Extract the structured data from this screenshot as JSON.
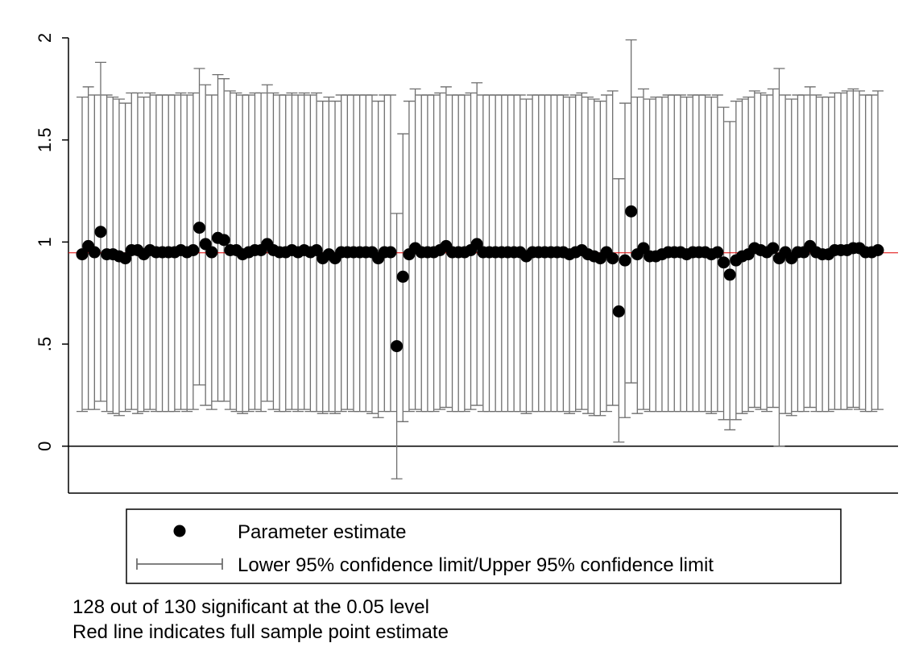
{
  "chart_data": {
    "type": "errorbar",
    "ylim": [
      -0.23,
      2.0
    ],
    "yticks": [
      0,
      {
        "value": 0.5,
        "label": ".5"
      },
      1,
      1.5,
      2
    ],
    "reference_line": {
      "value": 0.947,
      "color": "#e00000"
    },
    "zero_line": {
      "value": 0,
      "color": "#000000"
    },
    "series": [
      {
        "name": "Parameter estimate",
        "color": "#000000",
        "values": [
          0.94,
          0.98,
          0.95,
          1.05,
          0.94,
          0.94,
          0.93,
          0.92,
          0.96,
          0.96,
          0.94,
          0.96,
          0.95,
          0.95,
          0.95,
          0.95,
          0.96,
          0.95,
          0.96,
          1.07,
          0.99,
          0.95,
          1.02,
          1.01,
          0.96,
          0.96,
          0.94,
          0.95,
          0.96,
          0.96,
          0.99,
          0.96,
          0.95,
          0.95,
          0.96,
          0.95,
          0.96,
          0.95,
          0.96,
          0.92,
          0.94,
          0.92,
          0.95,
          0.95,
          0.95,
          0.95,
          0.95,
          0.95,
          0.92,
          0.95,
          0.95,
          0.49,
          0.83,
          0.94,
          0.97,
          0.95,
          0.95,
          0.95,
          0.96,
          0.98,
          0.95,
          0.95,
          0.95,
          0.96,
          0.99,
          0.95,
          0.95,
          0.95,
          0.95,
          0.95,
          0.95,
          0.95,
          0.93,
          0.95,
          0.95,
          0.95,
          0.95,
          0.95,
          0.95,
          0.94,
          0.95,
          0.96,
          0.94,
          0.93,
          0.92,
          0.95,
          0.92,
          0.66,
          0.91,
          1.15,
          0.94,
          0.97,
          0.93,
          0.93,
          0.94,
          0.95,
          0.95,
          0.95,
          0.94,
          0.95,
          0.95,
          0.95,
          0.94,
          0.95,
          0.9,
          0.84,
          0.91,
          0.93,
          0.94,
          0.97,
          0.96,
          0.95,
          0.97,
          0.92,
          0.95,
          0.92,
          0.95,
          0.95,
          0.98,
          0.95,
          0.94,
          0.94,
          0.96,
          0.96,
          0.96,
          0.97,
          0.97,
          0.95,
          0.95,
          0.96
        ]
      },
      {
        "name": "Lower 95% confidence limit/Upper 95% confidence limit",
        "color": "#6e6e6e",
        "lower": [
          0.17,
          0.18,
          0.18,
          0.22,
          0.17,
          0.16,
          0.15,
          0.17,
          0.18,
          0.16,
          0.17,
          0.18,
          0.17,
          0.17,
          0.17,
          0.17,
          0.18,
          0.17,
          0.18,
          0.3,
          0.2,
          0.18,
          0.22,
          0.22,
          0.18,
          0.17,
          0.16,
          0.17,
          0.18,
          0.17,
          0.22,
          0.18,
          0.17,
          0.17,
          0.18,
          0.17,
          0.18,
          0.17,
          0.17,
          0.16,
          0.17,
          0.16,
          0.17,
          0.18,
          0.17,
          0.17,
          0.17,
          0.16,
          0.14,
          0.17,
          0.17,
          -0.16,
          0.12,
          0.17,
          0.18,
          0.17,
          0.17,
          0.17,
          0.18,
          0.19,
          0.17,
          0.17,
          0.17,
          0.18,
          0.2,
          0.17,
          0.17,
          0.17,
          0.17,
          0.17,
          0.17,
          0.17,
          0.16,
          0.17,
          0.17,
          0.17,
          0.17,
          0.17,
          0.17,
          0.16,
          0.17,
          0.18,
          0.16,
          0.15,
          0.15,
          0.17,
          0.2,
          0.02,
          0.14,
          0.31,
          0.16,
          0.18,
          0.17,
          0.17,
          0.17,
          0.17,
          0.17,
          0.17,
          0.17,
          0.17,
          0.17,
          0.17,
          0.16,
          0.17,
          0.13,
          0.08,
          0.13,
          0.16,
          0.17,
          0.19,
          0.18,
          0.17,
          0.19,
          0.0,
          0.16,
          0.15,
          0.17,
          0.17,
          0.19,
          0.17,
          0.17,
          0.17,
          0.18,
          0.18,
          0.18,
          0.19,
          0.18,
          0.17,
          0.17,
          0.18
        ],
        "upper": [
          1.71,
          1.76,
          1.72,
          1.88,
          1.72,
          1.71,
          1.7,
          1.68,
          1.73,
          1.73,
          1.71,
          1.73,
          1.72,
          1.72,
          1.72,
          1.72,
          1.73,
          1.72,
          1.73,
          1.85,
          1.77,
          1.72,
          1.82,
          1.8,
          1.74,
          1.73,
          1.72,
          1.72,
          1.73,
          1.73,
          1.77,
          1.73,
          1.72,
          1.72,
          1.73,
          1.72,
          1.73,
          1.72,
          1.73,
          1.69,
          1.71,
          1.69,
          1.72,
          1.72,
          1.72,
          1.72,
          1.72,
          1.72,
          1.69,
          1.72,
          1.72,
          1.14,
          1.53,
          1.69,
          1.75,
          1.72,
          1.72,
          1.72,
          1.73,
          1.76,
          1.72,
          1.72,
          1.72,
          1.73,
          1.78,
          1.72,
          1.72,
          1.72,
          1.72,
          1.72,
          1.72,
          1.72,
          1.7,
          1.72,
          1.72,
          1.72,
          1.72,
          1.72,
          1.72,
          1.71,
          1.72,
          1.73,
          1.71,
          1.7,
          1.69,
          1.72,
          1.74,
          1.31,
          1.68,
          1.99,
          1.71,
          1.75,
          1.7,
          1.71,
          1.71,
          1.72,
          1.72,
          1.72,
          1.71,
          1.72,
          1.72,
          1.72,
          1.71,
          1.72,
          1.66,
          1.59,
          1.69,
          1.7,
          1.71,
          1.74,
          1.73,
          1.72,
          1.75,
          1.85,
          1.72,
          1.7,
          1.72,
          1.72,
          1.76,
          1.72,
          1.71,
          1.71,
          1.73,
          1.73,
          1.74,
          1.75,
          1.74,
          1.72,
          1.72,
          1.74
        ]
      }
    ],
    "notes": [
      "128 out of 130 significant at the 0.05 level",
      "Red line indicates full sample point estimate"
    ]
  }
}
